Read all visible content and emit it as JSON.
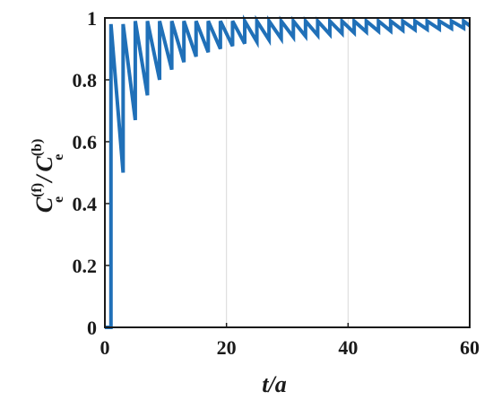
{
  "chart_data": {
    "type": "line",
    "title": "",
    "xlabel": "t/a",
    "ylabel": {
      "main": "C",
      "sup_num": "(f)",
      "sub_num": "e",
      "slash": "/",
      "main_den": "C",
      "sup_den": "(b)",
      "sub_den": "e"
    },
    "xlim": [
      0,
      60
    ],
    "ylim": [
      0,
      1
    ],
    "x_ticks": [
      0,
      20,
      40,
      60
    ],
    "x_tick_labels": [
      "0",
      "20",
      "40",
      "60"
    ],
    "y_ticks": [
      0,
      0.2,
      0.4,
      0.6,
      0.8,
      1
    ],
    "y_tick_labels": [
      "0",
      "0.2",
      "0.4",
      "0.6",
      "0.8",
      "1"
    ],
    "grid": {
      "x": true,
      "y": false
    },
    "colors": {
      "line": "#2070b8",
      "grid": "#d9d9d9",
      "axis": "#1a1a1a"
    },
    "series": [
      {
        "x": [
          0,
          1.0,
          1.0,
          3.0,
          3.0,
          5.0,
          5.0,
          7.0,
          7.0,
          9.0,
          9.0,
          11.0,
          11.0,
          13.0,
          13.0,
          15.0,
          15.0,
          17.0,
          17.0,
          19.0,
          19.0,
          21.0,
          21.0,
          23.0,
          23.0,
          25.0,
          25.0,
          27.0,
          27.0,
          29.0,
          29.0,
          31.0,
          31.0,
          33.0,
          33.0,
          35.0,
          35.0,
          37.0,
          37.0,
          39.0,
          39.0,
          41.0,
          41.0,
          43.0,
          43.0,
          45.0,
          45.0,
          47.0,
          47.0,
          49.0,
          49.0,
          51.0,
          51.0,
          53.0,
          53.0,
          55.0,
          55.0,
          57.0,
          57.0,
          59.0,
          59.0,
          60.0
        ],
        "y": [
          0,
          0,
          0.98,
          0.5,
          0.98,
          0.67,
          0.99,
          0.75,
          0.99,
          0.8,
          0.99,
          0.833,
          0.99,
          0.857,
          0.99,
          0.875,
          0.99,
          0.889,
          0.99,
          0.9,
          0.99,
          0.909,
          0.99,
          0.917,
          0.99,
          0.923,
          0.99,
          0.929,
          0.99,
          0.933,
          0.99,
          0.938,
          0.99,
          0.941,
          0.99,
          0.944,
          0.99,
          0.947,
          0.99,
          0.95,
          0.99,
          0.952,
          0.99,
          0.955,
          0.99,
          0.957,
          0.99,
          0.958,
          0.99,
          0.96,
          0.99,
          0.962,
          0.99,
          0.963,
          0.99,
          0.964,
          0.99,
          0.966,
          0.99,
          0.967,
          0.99,
          0.975
        ]
      }
    ]
  }
}
